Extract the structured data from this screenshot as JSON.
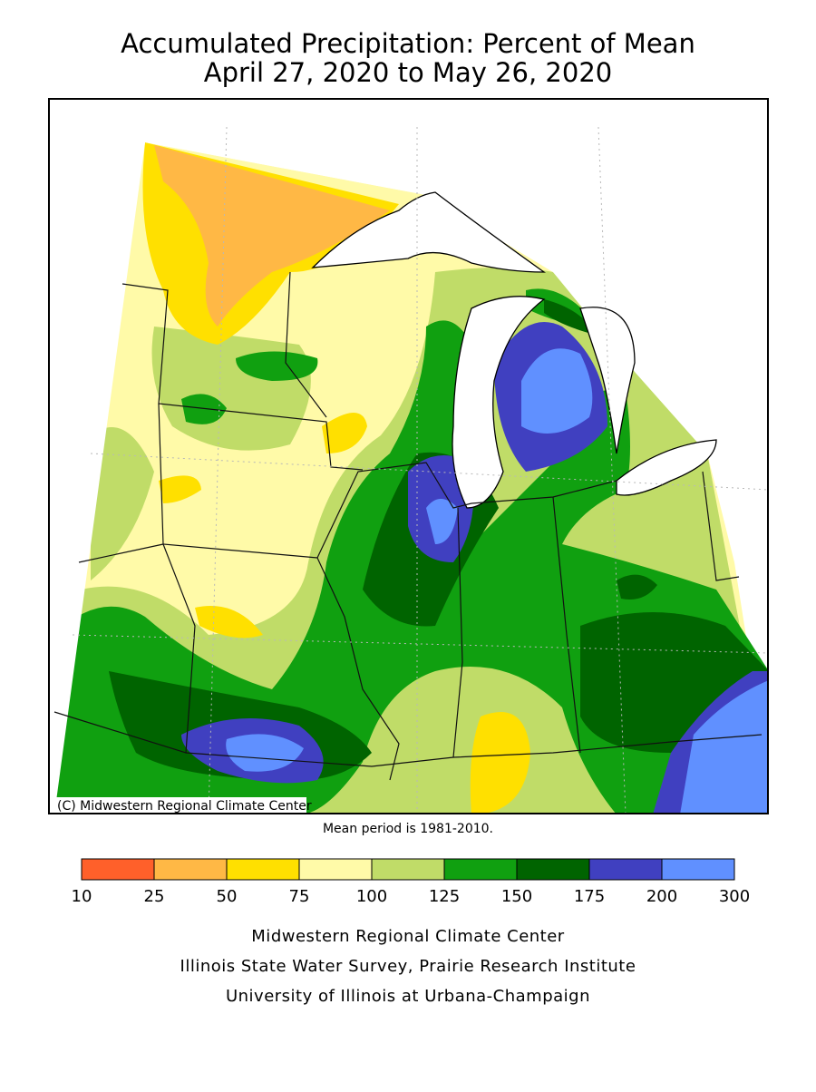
{
  "title": [
    "Accumulated Precipitation: Percent of Mean",
    "April 27, 2020 to May 26, 2020"
  ],
  "map": {
    "credit": "(C) Midwestern Regional Climate Center",
    "note": "Mean period is 1981-2010."
  },
  "legend": {
    "bins": [
      10,
      25,
      50,
      75,
      100,
      125,
      150,
      175,
      200,
      300
    ],
    "colors": [
      "#ff602a",
      "#ffb845",
      "#ffe000",
      "#fffaa8",
      "#c0dc68",
      "#10a010",
      "#006400",
      "#4040c0",
      "#6090ff"
    ]
  },
  "footer": [
    "Midwestern Regional Climate Center",
    "Illinois State Water Survey, Prairie Research Institute",
    "University of Illinois at Urbana-Champaign"
  ]
}
